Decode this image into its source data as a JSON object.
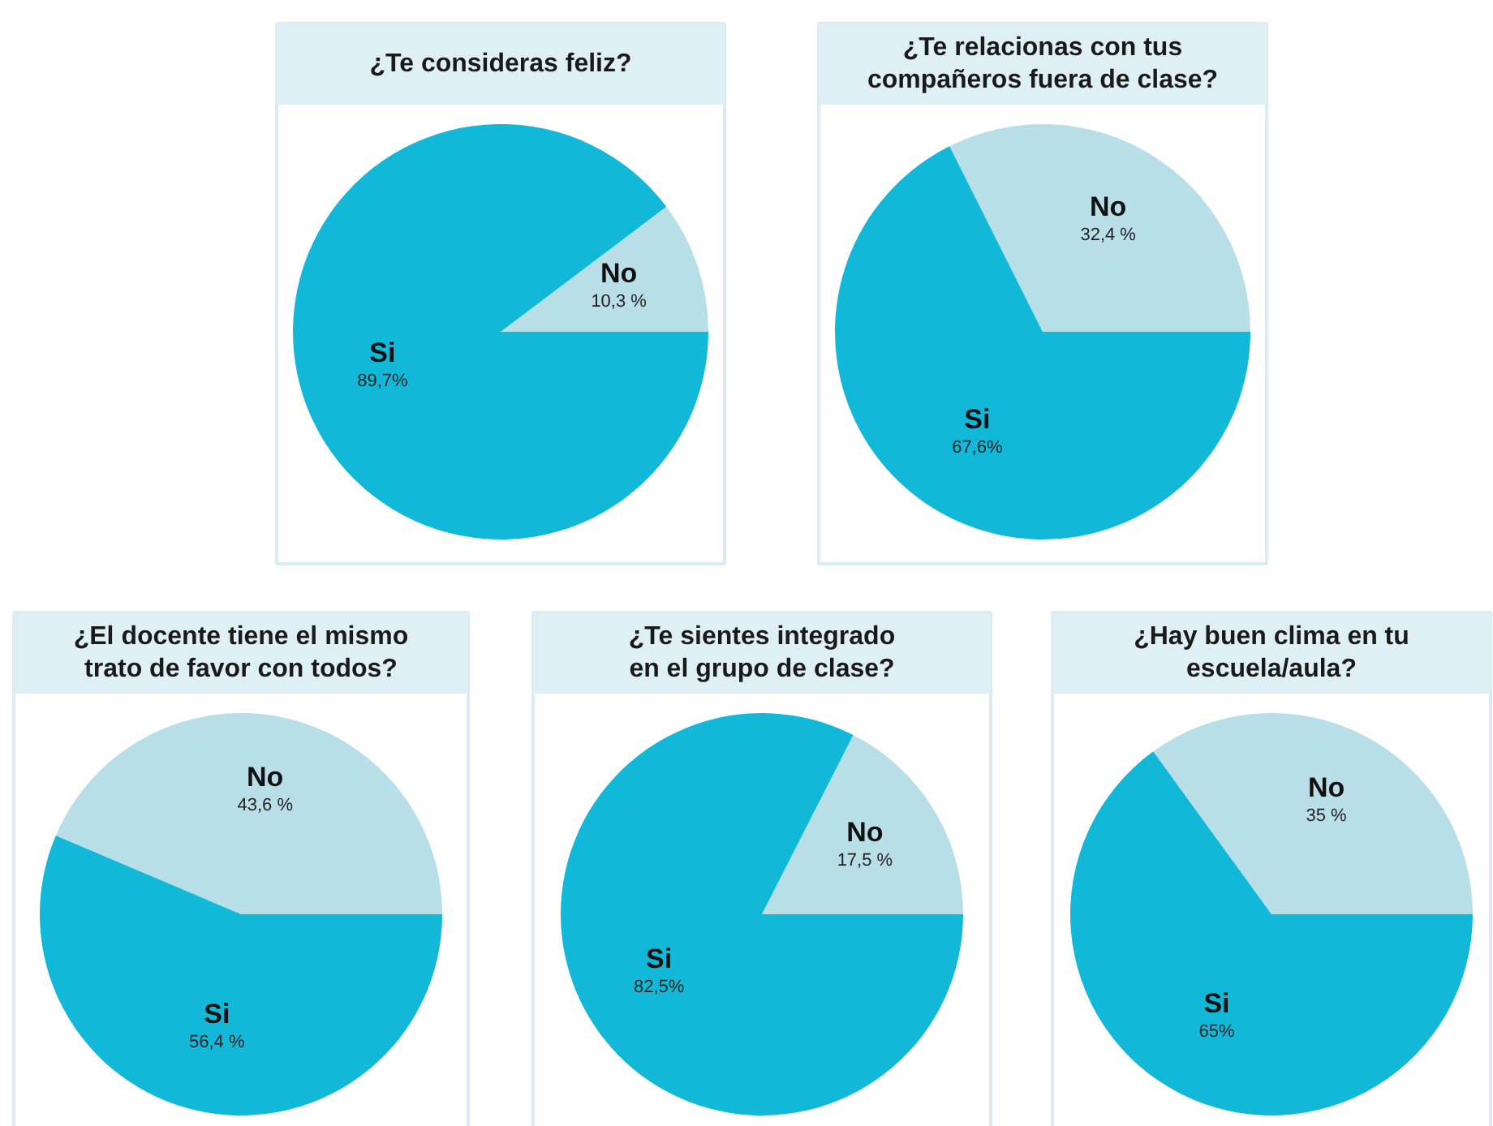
{
  "chart_data": [
    {
      "type": "pie",
      "title": "¿Te consideras feliz?",
      "categories": [
        "No",
        "Si"
      ],
      "values": [
        10.3,
        89.7
      ],
      "colors": [
        "#b8dfe8",
        "#12b8d8"
      ],
      "value_labels": [
        "10,3 %",
        "89,7%"
      ]
    },
    {
      "type": "pie",
      "title": "¿Te relacionas con tus\ncompañeros fuera de clase?",
      "categories": [
        "No",
        "Si"
      ],
      "values": [
        32.4,
        67.6
      ],
      "colors": [
        "#b8dfe8",
        "#12b8d8"
      ],
      "value_labels": [
        "32,4 %",
        "67,6%"
      ]
    },
    {
      "type": "pie",
      "title": "¿El docente tiene el mismo\ntrato de favor con todos?",
      "categories": [
        "No",
        "Si"
      ],
      "values": [
        43.6,
        56.4
      ],
      "colors": [
        "#b8dfe8",
        "#12b8d8"
      ],
      "value_labels": [
        "43,6 %",
        "56,4 %"
      ]
    },
    {
      "type": "pie",
      "title": "¿Te sientes integrado\nen el grupo de clase?",
      "categories": [
        "No",
        "Si"
      ],
      "values": [
        17.5,
        82.5
      ],
      "colors": [
        "#b8dfe8",
        "#12b8d8"
      ],
      "value_labels": [
        "17,5 %",
        "82,5%"
      ]
    },
    {
      "type": "pie",
      "title": "¿Hay buen clima en tu\nescuela/aula?",
      "categories": [
        "No",
        "Si"
      ],
      "values": [
        35,
        65
      ],
      "colors": [
        "#b8dfe8",
        "#12b8d8"
      ],
      "value_labels": [
        "35 %",
        "65%"
      ]
    }
  ]
}
